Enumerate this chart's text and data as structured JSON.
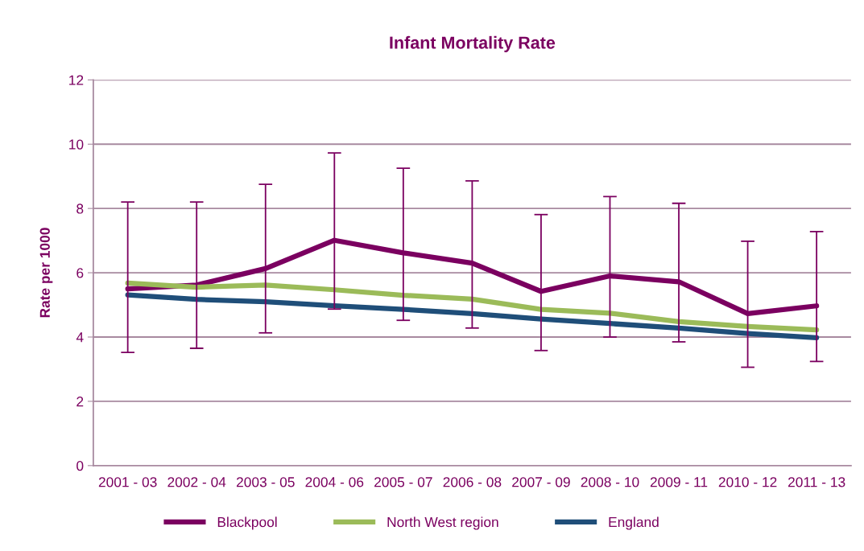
{
  "chart_data": {
    "type": "line",
    "title": "Infant Mortality Rate",
    "ylabel": "Rate per 1000",
    "categories": [
      "2001 - 03",
      "2002 - 04",
      "2003 - 05",
      "2004 - 06",
      "2005 - 07",
      "2006 - 08",
      "2007 - 09",
      "2008 - 10",
      "2009 - 11",
      "2010 - 12",
      "2011 - 13"
    ],
    "series": [
      {
        "name": "Blackpool",
        "color": "#7b0060",
        "values": [
          5.5,
          5.62,
          6.13,
          7.01,
          6.62,
          6.3,
          5.42,
          5.9,
          5.72,
          4.73,
          4.97
        ],
        "errors": [
          [
            3.52,
            8.2
          ],
          [
            3.65,
            8.2
          ],
          [
            4.13,
            8.75
          ],
          [
            4.87,
            9.73
          ],
          [
            4.52,
            9.25
          ],
          [
            4.28,
            8.86
          ],
          [
            3.58,
            7.81
          ],
          [
            4.0,
            8.37
          ],
          [
            3.85,
            8.16
          ],
          [
            3.06,
            6.98
          ],
          [
            3.24,
            7.28
          ]
        ]
      },
      {
        "name": "North West region",
        "color": "#9bbb59",
        "values": [
          5.68,
          5.55,
          5.62,
          5.47,
          5.3,
          5.18,
          4.86,
          4.74,
          4.48,
          4.33,
          4.22
        ]
      },
      {
        "name": "England",
        "color": "#1f4e79",
        "values": [
          5.31,
          5.17,
          5.1,
          4.97,
          4.86,
          4.73,
          4.56,
          4.42,
          4.28,
          4.11,
          3.98
        ]
      }
    ],
    "ylim": [
      0,
      12
    ],
    "yticks": [
      0,
      2,
      4,
      6,
      8,
      10,
      12
    ],
    "grid": "y",
    "legend": "bottom",
    "marker": "none",
    "line_style": "solid"
  }
}
